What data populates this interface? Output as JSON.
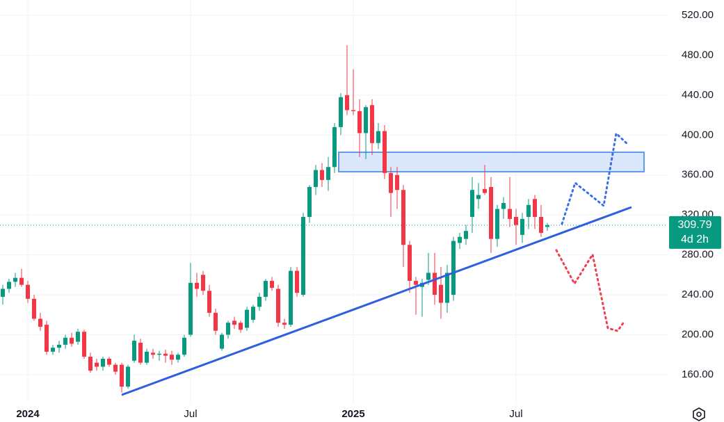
{
  "chart_data": {
    "type": "candlestick",
    "categories": [
      null,
      null,
      null,
      null,
      "2024",
      null,
      null,
      null,
      null,
      null,
      null,
      null,
      null,
      null,
      null,
      null,
      null,
      null,
      null,
      null,
      null,
      null,
      null,
      null,
      null,
      null,
      null,
      null,
      null,
      null,
      "Jul",
      null,
      null,
      null,
      null,
      null,
      null,
      null,
      null,
      null,
      null,
      null,
      null,
      null,
      null,
      null,
      null,
      null,
      null,
      null,
      null,
      null,
      null,
      null,
      null,
      null,
      "2025",
      null,
      null,
      null,
      null,
      null,
      null,
      null,
      null,
      null,
      null,
      null,
      null,
      null,
      null,
      null,
      null,
      null,
      null,
      null,
      null,
      null,
      null,
      null,
      null,
      null,
      "Jul",
      null,
      null,
      null,
      null,
      null
    ],
    "open": [
      238,
      246,
      253,
      257,
      250,
      236,
      216,
      210,
      183,
      187,
      190,
      197,
      193,
      203,
      178,
      172,
      168,
      176,
      170,
      170,
      148,
      174,
      192,
      172,
      182,
      180,
      181,
      180,
      175,
      180,
      200,
      252,
      260,
      244,
      222,
      186,
      200,
      214,
      212,
      207,
      215,
      228,
      238,
      254,
      246,
      212,
      210,
      264,
      240,
      318,
      348,
      365,
      355,
      368,
      408,
      440,
      425,
      424,
      402,
      430,
      392,
      404,
      362,
      360,
      345,
      290,
      254,
      248,
      255,
      262,
      250,
      232,
      240,
      292,
      296,
      318,
      336,
      346,
      348,
      296,
      326,
      326,
      318,
      300,
      318,
      336,
      318,
      308
    ],
    "high": [
      250,
      256,
      262,
      266,
      254,
      240,
      222,
      214,
      190,
      194,
      200,
      202,
      206,
      205,
      182,
      176,
      178,
      178,
      172,
      172,
      170,
      200,
      196,
      186,
      186,
      184,
      185,
      184,
      182,
      200,
      272,
      262,
      264,
      250,
      226,
      202,
      214,
      218,
      214,
      228,
      230,
      242,
      256,
      258,
      250,
      216,
      268,
      268,
      322,
      350,
      370,
      372,
      378,
      412,
      442,
      490,
      466,
      436,
      430,
      436,
      412,
      410,
      368,
      368,
      350,
      294,
      258,
      256,
      282,
      282,
      268,
      270,
      298,
      302,
      310,
      358,
      352,
      370,
      358,
      330,
      338,
      358,
      326,
      322,
      336,
      340,
      330,
      312
    ],
    "low": [
      230,
      242,
      248,
      248,
      232,
      214,
      204,
      180,
      180,
      182,
      186,
      188,
      190,
      176,
      162,
      164,
      164,
      168,
      160,
      142,
      146,
      172,
      170,
      170,
      176,
      174,
      172,
      170,
      172,
      178,
      198,
      238,
      240,
      218,
      200,
      184,
      196,
      206,
      202,
      204,
      212,
      224,
      234,
      244,
      208,
      206,
      208,
      238,
      238,
      312,
      340,
      348,
      344,
      362,
      400,
      420,
      420,
      378,
      376,
      380,
      386,
      356,
      318,
      326,
      268,
      242,
      220,
      218,
      250,
      230,
      216,
      222,
      234,
      286,
      290,
      302,
      326,
      340,
      282,
      288,
      316,
      308,
      290,
      292,
      306,
      306,
      298,
      304
    ],
    "close": [
      246,
      253,
      257,
      250,
      236,
      216,
      208,
      183,
      187,
      190,
      197,
      191,
      203,
      178,
      164,
      168,
      176,
      170,
      163,
      148,
      168,
      194,
      172,
      183,
      180,
      181,
      179,
      175,
      180,
      197,
      252,
      246,
      244,
      222,
      204,
      200,
      212,
      210,
      205,
      225,
      228,
      238,
      254,
      247,
      212,
      210,
      264,
      242,
      318,
      348,
      365,
      355,
      368,
      408,
      438,
      425,
      424,
      402,
      428,
      392,
      404,
      362,
      342,
      345,
      290,
      254,
      250,
      252,
      262,
      240,
      232,
      262,
      294,
      298,
      304,
      345,
      340,
      342,
      296,
      326,
      332,
      316,
      310,
      316,
      330,
      318,
      302,
      309.79
    ],
    "up_color": "#089981",
    "down_color": "#f23645",
    "last_price": 309.79,
    "countdown": "4d 2h",
    "ylim": [
      131.4,
      535.3
    ],
    "yticks": [
      {
        "value": 160,
        "label": "160.00"
      },
      {
        "value": 200,
        "label": "200.00"
      },
      {
        "value": 240,
        "label": "240.00"
      },
      {
        "value": 280,
        "label": "280.00"
      },
      {
        "value": 320,
        "label": "320.00"
      },
      {
        "value": 360,
        "label": "360.00"
      },
      {
        "value": 400,
        "label": "400.00"
      },
      {
        "value": 440,
        "label": "440.00"
      },
      {
        "value": 480,
        "label": "480.00"
      },
      {
        "value": 520,
        "label": "520.00"
      }
    ],
    "grid": true
  }
}
